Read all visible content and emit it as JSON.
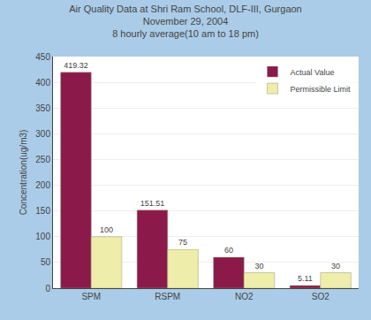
{
  "chart_data": {
    "type": "bar",
    "title": "Air Quality Data at Shri Ram School, DLF-III, Gurgaon\nNovember 29, 2004\n8 hourly average(10 am to 18 pm)",
    "categories": [
      "SPM",
      "RSPM",
      "NO2",
      "SO2"
    ],
    "series": [
      {
        "name": "Actual Value",
        "color": "#8B1A4A",
        "values": [
          419.32,
          151.51,
          60,
          5.11
        ]
      },
      {
        "name": "Permissible Limit",
        "color": "#EEEEAA",
        "values": [
          100,
          75,
          30,
          30
        ]
      }
    ],
    "ylabel": "Concentration(ug/m3)",
    "ylim": [
      0,
      450
    ],
    "yticks": [
      0,
      50,
      100,
      150,
      200,
      250,
      300,
      350,
      400,
      450
    ],
    "grid": true,
    "legend": "upper right",
    "data_labels": true
  }
}
